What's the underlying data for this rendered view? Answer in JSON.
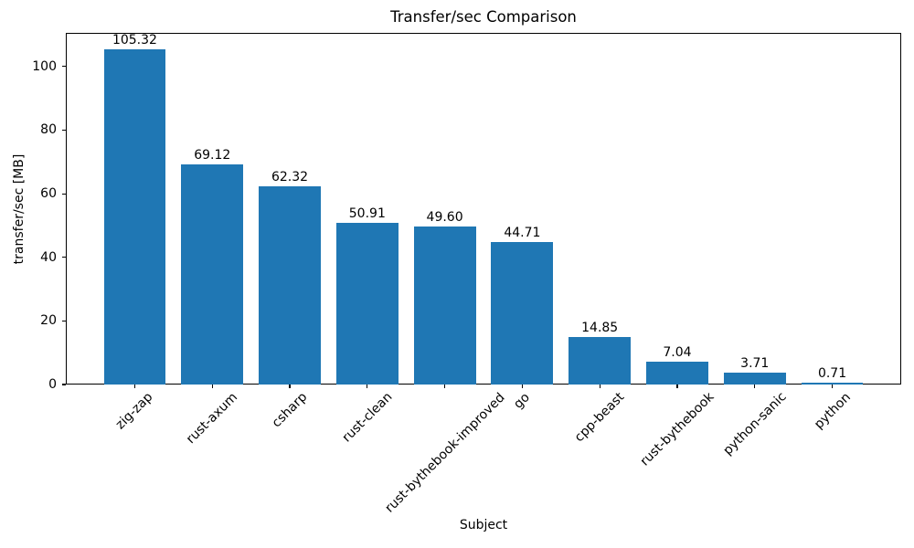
{
  "chart_data": {
    "type": "bar",
    "title": "Transfer/sec Comparison",
    "xlabel": "Subject",
    "ylabel": "transfer/sec [MB]",
    "categories": [
      "zig-zap",
      "rust-axum",
      "csharp",
      "rust-clean",
      "rust-bythebook-improved",
      "go",
      "cpp-beast",
      "rust-bythebook",
      "python-sanic",
      "python"
    ],
    "values": [
      105.32,
      69.12,
      62.32,
      50.91,
      49.6,
      44.71,
      14.85,
      7.04,
      3.71,
      0.71
    ],
    "value_labels": [
      "105.32",
      "69.12",
      "62.32",
      "50.91",
      "49.60",
      "44.71",
      "14.85",
      "7.04",
      "3.71",
      "0.71"
    ],
    "yticks": [
      0,
      20,
      40,
      60,
      80,
      100
    ],
    "ytick_labels": [
      "0",
      "20",
      "40",
      "60",
      "80",
      "100"
    ],
    "ylim": [
      0,
      110.59
    ],
    "xtick_rotation": 45,
    "grid": false,
    "legend": null,
    "bar_color": "#1f77b4",
    "text_color": "#000000",
    "background_color": "#ffffff"
  }
}
